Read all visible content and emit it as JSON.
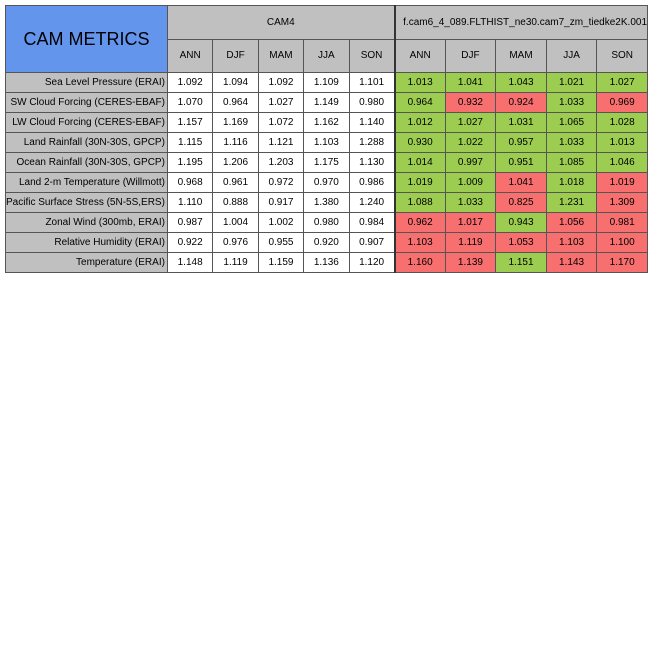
{
  "title": "CAM METRICS",
  "groups": [
    {
      "name": "CAM4"
    },
    {
      "name": "f.cam6_4_089.FLTHIST_ne30.cam7_zm_tiedke2K.001"
    }
  ],
  "seasons": [
    "ANN",
    "DJF",
    "MAM",
    "JJA",
    "SON"
  ],
  "rows": [
    {
      "label": "Sea Level Pressure (ERAI)",
      "cam4": [
        "1.092",
        "1.094",
        "1.092",
        "1.109",
        "1.101"
      ],
      "new": [
        "1.013",
        "1.041",
        "1.043",
        "1.021",
        "1.027"
      ],
      "status": [
        "good",
        "good",
        "good",
        "good",
        "good"
      ]
    },
    {
      "label": "SW Cloud Forcing (CERES-EBAF)",
      "cam4": [
        "1.070",
        "0.964",
        "1.027",
        "1.149",
        "0.980"
      ],
      "new": [
        "0.964",
        "0.932",
        "0.924",
        "1.033",
        "0.969"
      ],
      "status": [
        "good",
        "bad",
        "bad",
        "good",
        "bad"
      ]
    },
    {
      "label": "LW Cloud Forcing (CERES-EBAF)",
      "cam4": [
        "1.157",
        "1.169",
        "1.072",
        "1.162",
        "1.140"
      ],
      "new": [
        "1.012",
        "1.027",
        "1.031",
        "1.065",
        "1.028"
      ],
      "status": [
        "good",
        "good",
        "good",
        "good",
        "good"
      ]
    },
    {
      "label": "Land Rainfall (30N-30S, GPCP)",
      "cam4": [
        "1.115",
        "1.116",
        "1.121",
        "1.103",
        "1.288"
      ],
      "new": [
        "0.930",
        "1.022",
        "0.957",
        "1.033",
        "1.013"
      ],
      "status": [
        "good",
        "good",
        "good",
        "good",
        "good"
      ]
    },
    {
      "label": "Ocean Rainfall (30N-30S, GPCP)",
      "cam4": [
        "1.195",
        "1.206",
        "1.203",
        "1.175",
        "1.130"
      ],
      "new": [
        "1.014",
        "0.997",
        "0.951",
        "1.085",
        "1.046"
      ],
      "status": [
        "good",
        "good",
        "good",
        "good",
        "good"
      ]
    },
    {
      "label": "Land 2-m Temperature (Willmott)",
      "cam4": [
        "0.968",
        "0.961",
        "0.972",
        "0.970",
        "0.986"
      ],
      "new": [
        "1.019",
        "1.009",
        "1.041",
        "1.018",
        "1.019"
      ],
      "status": [
        "good",
        "good",
        "bad",
        "good",
        "bad"
      ]
    },
    {
      "label": "Pacific Surface Stress (5N-5S,ERS)",
      "cam4": [
        "1.110",
        "0.888",
        "0.917",
        "1.380",
        "1.240"
      ],
      "new": [
        "1.088",
        "1.033",
        "0.825",
        "1.231",
        "1.309"
      ],
      "status": [
        "good",
        "good",
        "bad",
        "good",
        "bad"
      ]
    },
    {
      "label": "Zonal Wind (300mb, ERAI)",
      "cam4": [
        "0.987",
        "1.004",
        "1.002",
        "0.980",
        "0.984"
      ],
      "new": [
        "0.962",
        "1.017",
        "0.943",
        "1.056",
        "0.981"
      ],
      "status": [
        "bad",
        "bad",
        "good",
        "bad",
        "bad"
      ]
    },
    {
      "label": "Relative Humidity (ERAI)",
      "cam4": [
        "0.922",
        "0.976",
        "0.955",
        "0.920",
        "0.907"
      ],
      "new": [
        "1.103",
        "1.119",
        "1.053",
        "1.103",
        "1.100"
      ],
      "status": [
        "bad",
        "bad",
        "bad",
        "bad",
        "bad"
      ]
    },
    {
      "label": "Temperature (ERAI)",
      "cam4": [
        "1.148",
        "1.119",
        "1.159",
        "1.136",
        "1.120"
      ],
      "new": [
        "1.160",
        "1.139",
        "1.151",
        "1.143",
        "1.170"
      ],
      "status": [
        "bad",
        "bad",
        "good",
        "bad",
        "bad"
      ]
    }
  ],
  "colors": {
    "header": "#c0c0c0",
    "title_bg": "#6495ed",
    "good": "#9ccd50",
    "bad": "#f86f6f"
  }
}
